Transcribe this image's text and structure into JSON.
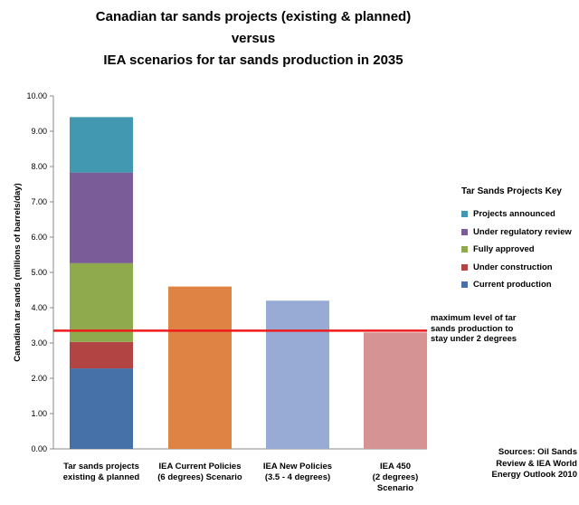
{
  "chart_data": {
    "type": "bar",
    "title_lines": [
      "Canadian tar sands projects (existing & planned)",
      "versus",
      "IEA scenarios for tar sands production in 2035"
    ],
    "ylabel": "Canadian tar sands (millions of barrels/day)",
    "ylim": [
      0,
      10
    ],
    "yticks": [
      "0.00",
      "1.00",
      "2.00",
      "3.00",
      "4.00",
      "5.00",
      "6.00",
      "7.00",
      "8.00",
      "9.00",
      "10.00"
    ],
    "stacked_categories": [
      {
        "label_lines": [
          "Tar sands projects",
          "existing & planned"
        ],
        "segments": [
          {
            "key": "current",
            "value": 2.28
          },
          {
            "key": "construction",
            "value": 0.75
          },
          {
            "key": "approved",
            "value": 2.23
          },
          {
            "key": "regulatory",
            "value": 2.57
          },
          {
            "key": "announced",
            "value": 1.57
          }
        ]
      }
    ],
    "single_bars": [
      {
        "label_lines": [
          "IEA Current Policies",
          "(6 degrees) Scenario"
        ],
        "value": 4.6,
        "color": "#de8344"
      },
      {
        "label_lines": [
          "IEA New Policies",
          "(3.5 - 4 degrees)"
        ],
        "value": 4.2,
        "color": "#97abd4"
      },
      {
        "label_lines": [
          "IEA 450",
          "(2 degrees)",
          "Scenario"
        ],
        "value": 3.3,
        "color": "#d69393"
      }
    ],
    "legend": {
      "title": "Tar Sands Projects Key",
      "position": "right",
      "items": [
        {
          "key": "announced",
          "label": "Projects announced",
          "color": "#4198b0"
        },
        {
          "key": "regulatory",
          "label": "Under regulatory review",
          "color": "#7a5c98"
        },
        {
          "key": "approved",
          "label": "Fully approved",
          "color": "#8faa4d"
        },
        {
          "key": "construction",
          "label": "Under construction",
          "color": "#b24543"
        },
        {
          "key": "current",
          "label": "Current production",
          "color": "#4670a8"
        }
      ]
    },
    "threshold": {
      "value": 3.35,
      "color": "#ee1c1c",
      "label_lines": [
        "maximum level of tar",
        "sands production to",
        "stay under 2 degrees"
      ]
    },
    "sources_lines": [
      "Sources: Oil Sands",
      "Review & IEA World",
      "Energy Outlook 2010"
    ],
    "grid": false
  }
}
